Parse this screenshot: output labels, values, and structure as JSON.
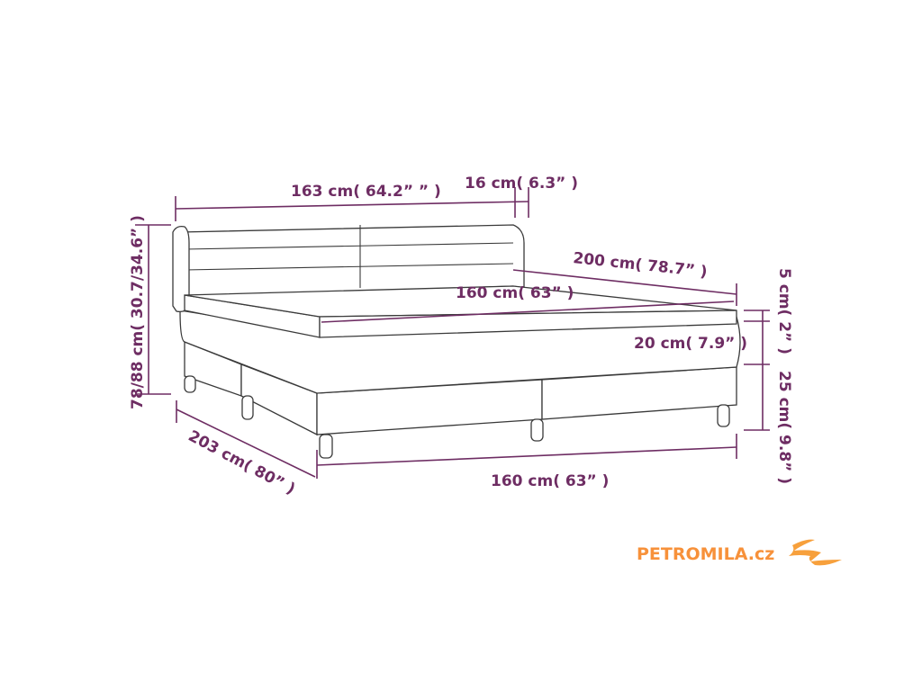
{
  "dimensions": {
    "headboard_width": "163 cm( 64.2” ” )",
    "wing_depth": "16 cm( 6.3” )",
    "total_height": "78/88 cm( 30.7/34.6” )",
    "length": "200 cm( 78.7” )",
    "mattress_width": "160 cm( 63” )",
    "topper_height": "5 cm( 2” )",
    "mattress_height": "20 cm( 7.9” )",
    "base_height": "25 cm( 9.8” )",
    "total_length": "203 cm( 80” )",
    "base_width": "160 cm( 63” )"
  },
  "colors": {
    "dimension": "#6e2d63",
    "logo": "#f7913a"
  },
  "logo": {
    "text": "PETROMILA.cz",
    "icon": "swirl-logo-icon"
  }
}
